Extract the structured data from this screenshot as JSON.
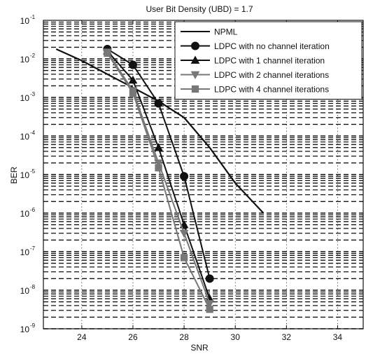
{
  "chart_data": {
    "type": "line",
    "title": "User Bit Density (UBD) = 1.7",
    "xlabel": "SNR",
    "ylabel": "BER",
    "xlim": [
      22.5,
      35
    ],
    "ylim": [
      1e-09,
      0.1
    ],
    "y_scale": "log",
    "grid": true,
    "legend_position": "top-right",
    "x_ticks": [
      24,
      26,
      28,
      30,
      32,
      34
    ],
    "y_ticks": [
      {
        "value": 1e-09,
        "base": "10",
        "exp": "-9"
      },
      {
        "value": 1e-08,
        "base": "10",
        "exp": "-8"
      },
      {
        "value": 1e-07,
        "base": "10",
        "exp": "-7"
      },
      {
        "value": 1e-06,
        "base": "10",
        "exp": "-6"
      },
      {
        "value": 1e-05,
        "base": "10",
        "exp": "-5"
      },
      {
        "value": 0.0001,
        "base": "10",
        "exp": "-4"
      },
      {
        "value": 0.001,
        "base": "10",
        "exp": "-3"
      },
      {
        "value": 0.01,
        "base": "10",
        "exp": "-2"
      },
      {
        "value": 0.1,
        "base": "10",
        "exp": "-1"
      }
    ],
    "series": [
      {
        "name": "NPML",
        "marker": "none",
        "color": "#111111",
        "x": [
          23,
          24,
          25,
          26,
          27,
          28,
          29,
          30,
          31.1
        ],
        "y": [
          0.018,
          0.009,
          0.004,
          0.0018,
          0.0008,
          0.0003,
          5e-05,
          6e-06,
          1e-06
        ]
      },
      {
        "name": "LDPC with no channel iteration",
        "marker": "circle",
        "color": "#111111",
        "x": [
          25,
          26,
          27,
          28,
          29
        ],
        "y": [
          0.018,
          0.007,
          0.0007,
          9e-06,
          2e-08
        ]
      },
      {
        "name": "LDPC with 1 channel iteration",
        "marker": "triangle-up",
        "color": "#111111",
        "x": [
          25,
          26,
          27,
          28,
          29
        ],
        "y": [
          0.016,
          0.0028,
          5e-05,
          5e-07,
          6e-09
        ]
      },
      {
        "name": "LDPC with 2 channel iterations",
        "marker": "triangle-down",
        "color": "#777777",
        "x": [
          25,
          26,
          27,
          28,
          29
        ],
        "y": [
          0.015,
          0.0015,
          2e-05,
          3e-07,
          4.5e-09
        ]
      },
      {
        "name": "LDPC with 4 channel iterations",
        "marker": "square",
        "color": "#777777",
        "x": [
          25,
          26,
          27,
          28,
          29
        ],
        "y": [
          0.014,
          0.0013,
          1.5e-05,
          7e-08,
          3.2e-09
        ]
      }
    ]
  }
}
